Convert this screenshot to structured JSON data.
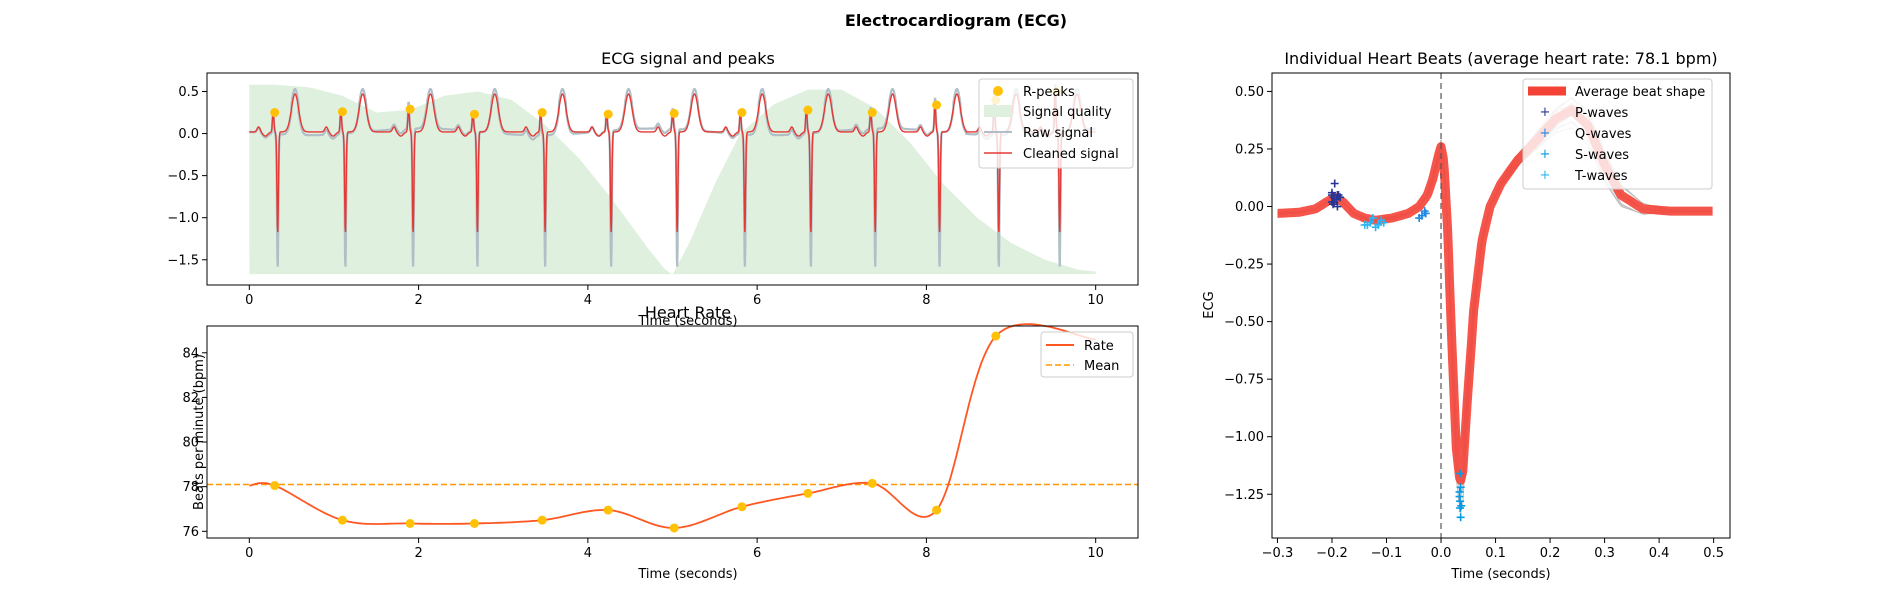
{
  "figure": {
    "title": "Electrocardiogram (ECG)"
  },
  "colors": {
    "rpeak": "#FFC107",
    "quality": "#DFF0DF",
    "raw": "#B0BEC5",
    "cleaned": "#E53935",
    "rate": "#FF5722",
    "mean": "#FF9800",
    "avg_beat": "#F44336",
    "individual_beat": "#BDBDBD",
    "p_wave": "#283593",
    "q_wave": "#1E88E5",
    "s_wave": "#039BE5",
    "t_wave": "#29B6F6"
  },
  "chart_data": [
    {
      "id": "ecg",
      "type": "line",
      "title": "ECG signal and peaks",
      "xlabel": "Time (seconds)",
      "ylabel": "",
      "xlim": [
        -0.5,
        10.5
      ],
      "ylim": [
        -1.8,
        0.72
      ],
      "xticks": [
        0,
        2,
        4,
        6,
        8,
        10
      ],
      "yticks": [
        0.5,
        0.0,
        -0.5,
        -1.0,
        -1.5
      ],
      "xtick_labels": [
        "0",
        "2",
        "4",
        "6",
        "8",
        "10"
      ],
      "ytick_labels": [
        "0.5",
        "0.0",
        "−0.5",
        "−1.0",
        "−1.5"
      ],
      "legend": {
        "position": "top-right",
        "entries": [
          "R-peaks",
          "Signal quality",
          "Raw signal",
          "Cleaned signal"
        ]
      },
      "rpeaks": {
        "name": "R-peaks",
        "x": [
          0.3,
          1.1,
          1.9,
          2.66,
          3.46,
          4.24,
          5.02,
          5.82,
          6.6,
          7.36,
          8.12,
          8.82,
          9.54
        ],
        "y": [
          0.25,
          0.26,
          0.29,
          0.23,
          0.25,
          0.23,
          0.24,
          0.25,
          0.28,
          0.25,
          0.34,
          0.4,
          0.5
        ]
      },
      "quality": {
        "name": "Signal quality",
        "x": [
          0.0,
          0.3,
          0.7,
          1.1,
          1.5,
          1.9,
          2.3,
          2.7,
          3.1,
          3.5,
          3.9,
          4.3,
          4.7,
          4.9,
          5.0,
          5.2,
          5.5,
          5.8,
          6.2,
          6.6,
          7.0,
          7.4,
          7.8,
          8.2,
          8.6,
          9.0,
          9.4,
          9.8,
          10.0
        ],
        "y": [
          0.58,
          0.58,
          0.55,
          0.45,
          0.25,
          0.28,
          0.45,
          0.5,
          0.4,
          0.1,
          -0.3,
          -0.8,
          -1.35,
          -1.6,
          -1.68,
          -1.3,
          -0.6,
          0.0,
          0.35,
          0.52,
          0.52,
          0.3,
          -0.1,
          -0.6,
          -1.0,
          -1.3,
          -1.5,
          -1.62,
          -1.64
        ]
      },
      "raw_signal": {
        "name": "Raw signal",
        "baseline_shift": -0.04,
        "peak_overshoot": 0.06,
        "trough_min": -1.7
      },
      "cleaned_signal": {
        "name": "Cleaned signal",
        "baseline": 0.02,
        "s_trough": -1.2
      }
    },
    {
      "id": "rate",
      "type": "line",
      "title": "Heart Rate",
      "xlabel": "Time (seconds)",
      "ylabel": "Beats per minute (bpm)",
      "xlim": [
        -0.5,
        10.5
      ],
      "ylim": [
        75.7,
        85.2
      ],
      "xticks": [
        0,
        2,
        4,
        6,
        8,
        10
      ],
      "yticks": [
        76,
        78,
        80,
        82,
        84
      ],
      "xtick_labels": [
        "0",
        "2",
        "4",
        "6",
        "8",
        "10"
      ],
      "ytick_labels": [
        "76",
        "78",
        "80",
        "82",
        "84"
      ],
      "legend": {
        "position": "top-right",
        "entries": [
          "Rate",
          "Mean"
        ]
      },
      "series": [
        {
          "name": "Rate",
          "x": [
            0.0,
            0.3,
            1.1,
            1.9,
            2.66,
            3.46,
            4.24,
            5.02,
            5.82,
            6.6,
            7.36,
            8.12,
            8.82,
            10.0
          ],
          "y": [
            78.05,
            78.05,
            76.5,
            76.35,
            76.35,
            76.5,
            76.95,
            76.15,
            77.1,
            77.7,
            78.15,
            76.95,
            84.75,
            84.6
          ]
        },
        {
          "name": "Mean",
          "value": 78.1
        }
      ],
      "markers": {
        "x": [
          0.3,
          1.1,
          1.9,
          2.66,
          3.46,
          4.24,
          5.02,
          5.82,
          6.6,
          7.36,
          8.12,
          8.82
        ],
        "y": [
          78.05,
          76.5,
          76.35,
          76.35,
          76.5,
          76.95,
          76.15,
          77.1,
          77.7,
          78.15,
          76.95,
          84.75
        ]
      }
    },
    {
      "id": "beats",
      "type": "line",
      "title": "Individual Heart Beats (average heart rate: 78.1 bpm)",
      "xlabel": "Time (seconds)",
      "ylabel": "ECG",
      "xlim": [
        -0.31,
        0.53
      ],
      "ylim": [
        -1.44,
        0.58
      ],
      "xticks": [
        -0.3,
        -0.2,
        -0.1,
        0.0,
        0.1,
        0.2,
        0.3,
        0.4,
        0.5
      ],
      "yticks": [
        0.5,
        0.25,
        0.0,
        -0.25,
        -0.5,
        -0.75,
        -1.0,
        -1.25
      ],
      "xtick_labels": [
        "−0.3",
        "−0.2",
        "−0.1",
        "0.0",
        "0.1",
        "0.2",
        "0.3",
        "0.4",
        "0.5"
      ],
      "ytick_labels": [
        "0.50",
        "0.25",
        "0.00",
        "−0.25",
        "−0.50",
        "−0.75",
        "−1.00",
        "−1.25"
      ],
      "vline_x": 0.0,
      "legend": {
        "position": "top-right",
        "entries": [
          "Average beat shape",
          "P-waves",
          "Q-waves",
          "S-waves",
          "T-waves"
        ]
      },
      "average_beat": {
        "name": "Average beat shape",
        "x": [
          -0.3,
          -0.26,
          -0.23,
          -0.21,
          -0.195,
          -0.18,
          -0.16,
          -0.14,
          -0.12,
          -0.09,
          -0.06,
          -0.04,
          -0.025,
          -0.015,
          -0.005,
          0.0,
          0.005,
          0.012,
          0.02,
          0.028,
          0.035,
          0.04,
          0.048,
          0.06,
          0.075,
          0.09,
          0.11,
          0.14,
          0.18,
          0.21,
          0.24,
          0.27,
          0.3,
          0.33,
          0.37,
          0.42,
          0.46,
          0.5
        ],
        "y": [
          -0.03,
          -0.025,
          -0.01,
          0.02,
          0.04,
          0.02,
          -0.03,
          -0.05,
          -0.06,
          -0.05,
          -0.03,
          0.0,
          0.05,
          0.12,
          0.22,
          0.26,
          0.2,
          -0.1,
          -0.6,
          -1.05,
          -1.2,
          -1.15,
          -0.85,
          -0.45,
          -0.15,
          0.0,
          0.1,
          0.2,
          0.3,
          0.38,
          0.42,
          0.35,
          0.18,
          0.05,
          -0.01,
          -0.02,
          -0.02,
          -0.02
        ]
      },
      "individual_beats": {
        "count": 12
      },
      "p_waves": {
        "x": [
          -0.195,
          -0.2,
          -0.19,
          -0.197,
          -0.188,
          -0.2,
          -0.192,
          -0.185,
          -0.198,
          -0.19,
          -0.196,
          -0.2
        ],
        "y": [
          0.1,
          0.06,
          0.05,
          0.04,
          0.05,
          0.02,
          0.03,
          0.04,
          0.01,
          0.0,
          0.02,
          0.05
        ]
      },
      "q_waves": {
        "x": [
          -0.03,
          -0.035,
          -0.028,
          -0.04
        ],
        "y": [
          -0.02,
          -0.04,
          -0.03,
          -0.05
        ]
      },
      "s_waves": {
        "x": [
          0.035,
          0.036,
          0.034,
          0.037,
          0.035,
          0.036,
          0.034,
          0.035
        ],
        "y": [
          -1.16,
          -1.22,
          -1.26,
          -1.3,
          -1.31,
          -1.35,
          -1.24,
          -1.28
        ]
      },
      "t_waves": {
        "x": [
          -0.14,
          -0.13,
          -0.12,
          -0.11,
          -0.125,
          -0.135,
          -0.115,
          -0.105
        ],
        "y": [
          -0.08,
          -0.07,
          -0.09,
          -0.06,
          -0.05,
          -0.08,
          -0.08,
          -0.07
        ]
      }
    }
  ]
}
